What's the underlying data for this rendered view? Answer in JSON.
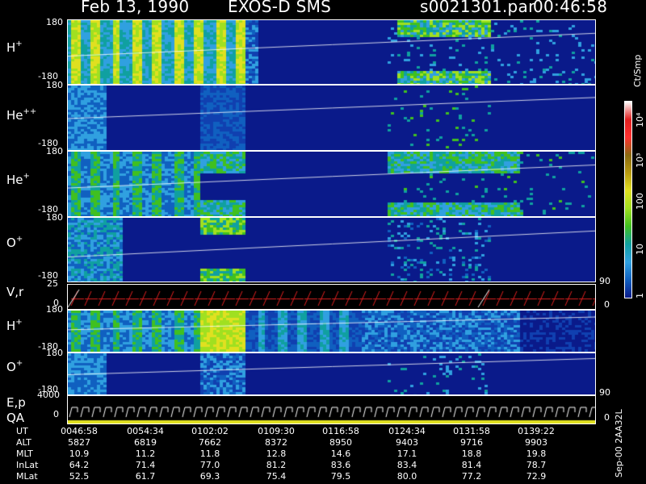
{
  "header": {
    "date": "Feb 13, 1990",
    "mission": "EXOS-D SMS",
    "file": "s0021301.par",
    "time": "00:46:58"
  },
  "panels": {
    "p1": {
      "label_base": "H",
      "label_sup": "+",
      "top_tick": "180",
      "bottom_tick": "-180"
    },
    "p2": {
      "label_base": "He",
      "label_sup": "++",
      "top_tick": "180",
      "bottom_tick": "-180"
    },
    "p3": {
      "label_base": "He",
      "label_sup": "+",
      "top_tick": "180",
      "bottom_tick": "-180"
    },
    "p4": {
      "label_base": "O",
      "label_sup": "+",
      "top_tick": "180",
      "bottom_tick": "-180",
      "right_tick": "90"
    },
    "p5": {
      "label": "V,r",
      "top_tick": "25",
      "bottom_tick": "0",
      "right_tick": "0"
    },
    "p6": {
      "label_base": "H",
      "label_sup": "+",
      "top_tick": "180",
      "bottom_tick": "-180"
    },
    "p7": {
      "label_base": "O",
      "label_sup": "+",
      "top_tick": "180",
      "bottom_tick": "-180",
      "right_tick": "90"
    },
    "p8": {
      "label1": "E,p",
      "label2": "QA",
      "top_tick": "4000",
      "bottom_tick": "0",
      "right_tick": "0"
    }
  },
  "colorbar": {
    "unit": "Ct/Smp",
    "ticks": [
      "10⁴",
      "10³",
      "100",
      "10",
      "1"
    ],
    "colors": [
      "#ffffff",
      "#e02020",
      "#ff3030",
      "#8a6a10",
      "#b89a10",
      "#e0e020",
      "#a0e020",
      "#40c020",
      "#10a0a0",
      "#30a0e0",
      "#1060c0",
      "#0a1a8a"
    ]
  },
  "footer": {
    "rows": [
      {
        "name": "UT",
        "values": [
          "0046:58",
          "0054:34",
          "0102:02",
          "0109:30",
          "0116:58",
          "0124:34",
          "0131:58",
          "0139:22"
        ]
      },
      {
        "name": "ALT",
        "values": [
          "5827",
          "6819",
          "7662",
          "8372",
          "8950",
          "9403",
          "9716",
          "9903"
        ]
      },
      {
        "name": "MLT",
        "values": [
          "10.9",
          "11.2",
          "11.8",
          "12.8",
          "14.6",
          "17.1",
          "18.8",
          "19.8"
        ]
      },
      {
        "name": "InLat",
        "values": [
          "64.2",
          "71.4",
          "77.0",
          "81.2",
          "83.6",
          "83.4",
          "81.4",
          "78.7"
        ]
      },
      {
        "name": "MLat",
        "values": [
          "52.5",
          "61.7",
          "69.3",
          "75.4",
          "79.5",
          "80.0",
          "77.2",
          "72.9"
        ]
      }
    ],
    "stamp": "Sep-00  2AA32L"
  }
}
